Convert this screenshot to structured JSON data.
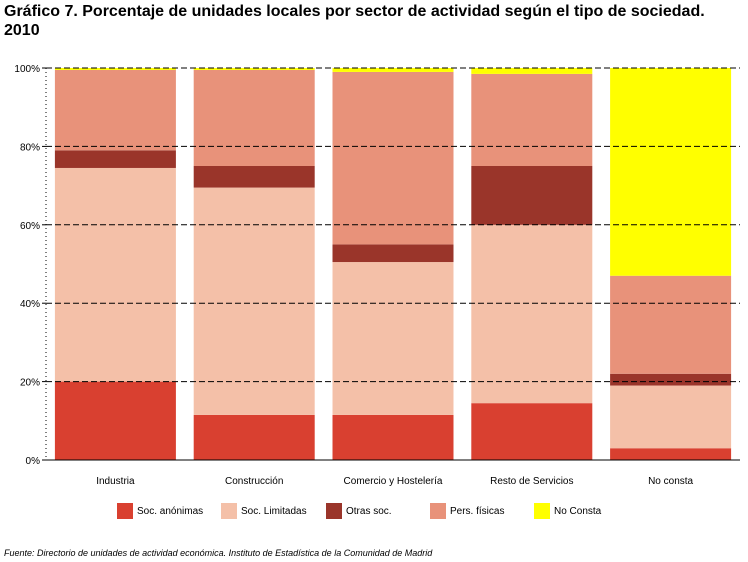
{
  "title": "Gráfico 7. Porcentaje de unidades locales por sector de actividad según el tipo de sociedad. 2010",
  "source": "Fuente: Directorio de unidades de actividad económica. Instituto de Estadística de la Comunidad de Madrid",
  "chart_data": {
    "type": "bar",
    "stacked": true,
    "categories": [
      "Industria",
      "Construcción",
      "Comercio y Hostelería",
      "Resto de Servicios",
      "No consta"
    ],
    "series": [
      {
        "name": "Soc. anónimas",
        "color": "#d94030",
        "values": [
          20,
          11.5,
          11.5,
          14.5,
          3
        ]
      },
      {
        "name": "Soc. Limitadas",
        "color": "#f4c0a8",
        "values": [
          54.5,
          58,
          39,
          45.5,
          16
        ]
      },
      {
        "name": "Otras soc.",
        "color": "#9a352a",
        "values": [
          4.5,
          5.5,
          4.5,
          15,
          3
        ]
      },
      {
        "name": "Pers. físicas",
        "color": "#e8927a",
        "values": [
          20.5,
          24.5,
          44,
          23.5,
          25
        ]
      },
      {
        "name": "No Consta",
        "color": "#ffff00",
        "values": [
          0.5,
          0.5,
          1,
          1.5,
          53
        ]
      }
    ],
    "y_ticks": [
      "0%",
      "20%",
      "40%",
      "60%",
      "80%",
      "100%"
    ],
    "ylim": [
      0,
      100
    ],
    "grid": "horizontal dashed",
    "legend": "bottom"
  }
}
